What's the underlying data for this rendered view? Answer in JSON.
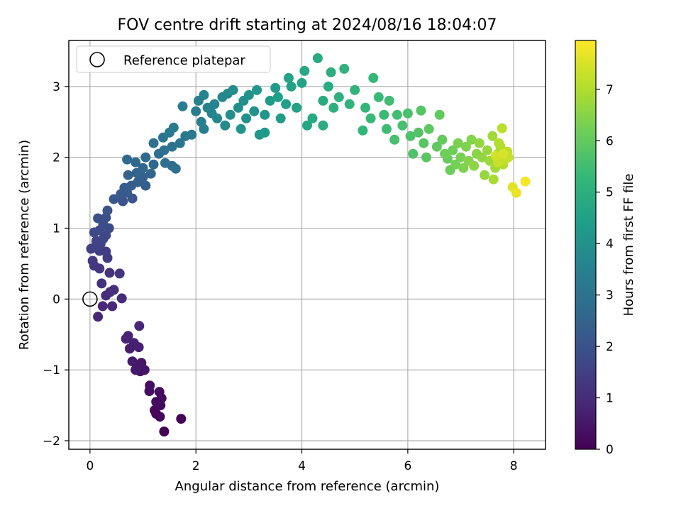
{
  "chart_data": {
    "type": "scatter",
    "title": "FOV centre drift starting at 2024/08/16 18:04:07",
    "xlabel": "Angular distance from reference (arcmin)",
    "ylabel": "Rotation from reference (arcmin)",
    "xlim": [
      -0.4,
      8.6
    ],
    "ylim": [
      -2.12,
      3.65
    ],
    "xticks": [
      0,
      2,
      4,
      6,
      8
    ],
    "yticks": [
      -2,
      -1,
      0,
      1,
      2,
      3
    ],
    "grid": true,
    "legend": {
      "position": "top-left",
      "entries": [
        "Reference platepar"
      ]
    },
    "reference_point": {
      "x": 0,
      "y": 0,
      "label": "Reference platepar"
    },
    "colorbar": {
      "label": "Hours from first FF file",
      "colormap": "viridis",
      "range": [
        0,
        7.95
      ],
      "ticks": [
        0,
        1,
        2,
        3,
        4,
        5,
        6,
        7
      ]
    },
    "colormap_stops": [
      "#440154",
      "#482878",
      "#3e4a89",
      "#31688e",
      "#26828e",
      "#1f9e89",
      "#35b779",
      "#6ece58",
      "#b5de2b",
      "#fde725"
    ],
    "points": [
      [
        1.4,
        -1.87,
        0.02
      ],
      [
        1.72,
        -1.69,
        0.05
      ],
      [
        1.25,
        -1.62,
        0.1
      ],
      [
        1.32,
        -1.66,
        0.12
      ],
      [
        1.22,
        -1.57,
        0.15
      ],
      [
        1.33,
        -1.5,
        0.18
      ],
      [
        1.27,
        -1.48,
        0.2
      ],
      [
        1.35,
        -1.4,
        0.22
      ],
      [
        1.25,
        -1.45,
        0.25
      ],
      [
        1.31,
        -1.31,
        0.28
      ],
      [
        1.12,
        -1.3,
        0.32
      ],
      [
        1.13,
        -1.22,
        0.35
      ],
      [
        0.95,
        -1.02,
        0.4
      ],
      [
        1.03,
        -1.0,
        0.44
      ],
      [
        0.97,
        -0.9,
        0.48
      ],
      [
        0.9,
        -0.95,
        0.52
      ],
      [
        0.86,
        -1.0,
        0.55
      ],
      [
        0.8,
        -0.88,
        0.6
      ],
      [
        0.75,
        -0.7,
        0.64
      ],
      [
        0.92,
        -0.68,
        0.68
      ],
      [
        0.83,
        -0.62,
        0.72
      ],
      [
        0.68,
        -0.56,
        0.76
      ],
      [
        0.72,
        -0.52,
        0.8
      ],
      [
        0.93,
        -0.38,
        0.85
      ],
      [
        0.15,
        -0.25,
        0.88
      ],
      [
        0.24,
        -0.1,
        0.92
      ],
      [
        0.42,
        -0.1,
        0.95
      ],
      [
        0.6,
        0.01,
        0.98
      ],
      [
        0.3,
        0.05,
        1.02
      ],
      [
        0.38,
        0.1,
        1.06
      ],
      [
        0.45,
        0.13,
        1.1
      ],
      [
        0.22,
        0.22,
        1.14
      ],
      [
        0.37,
        0.37,
        1.18
      ],
      [
        0.56,
        0.36,
        1.22
      ],
      [
        0.18,
        0.43,
        1.26
      ],
      [
        0.08,
        0.47,
        1.3
      ],
      [
        0.05,
        0.54,
        1.34
      ],
      [
        0.33,
        0.58,
        1.38
      ],
      [
        0.3,
        0.67,
        1.42
      ],
      [
        0.18,
        0.68,
        1.46
      ],
      [
        0.02,
        0.71,
        1.5
      ],
      [
        0.1,
        0.74,
        1.54
      ],
      [
        0.2,
        0.78,
        1.58
      ],
      [
        0.12,
        0.82,
        1.62
      ],
      [
        0.25,
        0.85,
        1.66
      ],
      [
        0.3,
        0.9,
        1.7
      ],
      [
        0.08,
        0.94,
        1.74
      ],
      [
        0.18,
        0.97,
        1.78
      ],
      [
        0.36,
        1.0,
        1.82
      ],
      [
        0.25,
        1.05,
        1.86
      ],
      [
        0.15,
        1.14,
        1.9
      ],
      [
        0.3,
        1.15,
        1.95
      ],
      [
        0.33,
        1.25,
        2.0
      ],
      [
        0.62,
        1.38,
        2.05
      ],
      [
        0.8,
        1.42,
        2.1
      ],
      [
        0.45,
        1.41,
        2.15
      ],
      [
        0.58,
        1.48,
        2.2
      ],
      [
        0.7,
        1.5,
        2.24
      ],
      [
        0.65,
        1.57,
        2.28
      ],
      [
        0.78,
        1.6,
        2.32
      ],
      [
        1.05,
        1.6,
        2.36
      ],
      [
        0.9,
        1.65,
        2.4
      ],
      [
        1.0,
        1.72,
        2.44
      ],
      [
        0.72,
        1.75,
        2.48
      ],
      [
        0.88,
        1.78,
        2.52
      ],
      [
        1.15,
        1.77,
        2.56
      ],
      [
        1.0,
        1.85,
        2.6
      ],
      [
        1.2,
        1.9,
        2.64
      ],
      [
        0.86,
        1.93,
        2.68
      ],
      [
        0.7,
        1.97,
        2.72
      ],
      [
        1.05,
        2.0,
        2.76
      ],
      [
        1.3,
        2.05,
        2.8
      ],
      [
        1.42,
        1.92,
        2.84
      ],
      [
        1.55,
        1.88,
        2.88
      ],
      [
        1.62,
        1.84,
        2.92
      ],
      [
        1.4,
        2.1,
        2.96
      ],
      [
        1.2,
        2.2,
        3.0
      ],
      [
        1.55,
        2.15,
        3.04
      ],
      [
        1.38,
        2.28,
        3.08
      ],
      [
        1.7,
        2.2,
        3.12
      ],
      [
        1.8,
        2.3,
        3.16
      ],
      [
        1.5,
        2.35,
        3.2
      ],
      [
        1.92,
        2.32,
        3.24
      ],
      [
        1.58,
        2.42,
        3.28
      ],
      [
        1.75,
        2.72,
        3.32
      ],
      [
        2.0,
        2.65,
        3.36
      ],
      [
        2.1,
        2.5,
        3.4
      ],
      [
        2.15,
        2.4,
        3.44
      ],
      [
        2.05,
        2.8,
        3.48
      ],
      [
        2.15,
        2.88,
        3.52
      ],
      [
        2.22,
        2.7,
        3.56
      ],
      [
        2.35,
        2.75,
        3.6
      ],
      [
        2.3,
        2.62,
        3.64
      ],
      [
        2.4,
        2.55,
        3.68
      ],
      [
        2.5,
        2.85,
        3.72
      ],
      [
        2.6,
        2.9,
        3.76
      ],
      [
        2.55,
        2.45,
        3.8
      ],
      [
        2.7,
        2.95,
        3.84
      ],
      [
        2.8,
        2.7,
        3.88
      ],
      [
        2.65,
        2.6,
        3.92
      ],
      [
        2.9,
        2.8,
        3.96
      ],
      [
        2.95,
        2.55,
        4.0
      ],
      [
        3.0,
        2.88,
        4.04
      ],
      [
        3.1,
        2.65,
        4.08
      ],
      [
        2.85,
        2.4,
        4.12
      ],
      [
        3.2,
        2.32,
        4.16
      ],
      [
        3.3,
        2.6,
        4.2
      ],
      [
        3.15,
        2.95,
        4.24
      ],
      [
        3.4,
        2.8,
        4.28
      ],
      [
        3.5,
        2.98,
        4.32
      ],
      [
        3.3,
        2.35,
        4.36
      ],
      [
        3.6,
        2.55,
        4.4
      ],
      [
        3.7,
        2.75,
        4.44
      ],
      [
        3.55,
        2.85,
        4.48
      ],
      [
        3.8,
        3.0,
        4.52
      ],
      [
        3.9,
        2.7,
        4.56
      ],
      [
        3.75,
        3.12,
        4.6
      ],
      [
        4.0,
        3.05,
        4.64
      ],
      [
        4.1,
        2.45,
        4.68
      ],
      [
        4.05,
        3.22,
        4.72
      ],
      [
        4.2,
        2.55,
        4.76
      ],
      [
        4.3,
        3.4,
        4.8
      ],
      [
        4.4,
        2.8,
        4.84
      ],
      [
        4.5,
        3.0,
        4.88
      ],
      [
        4.4,
        2.45,
        4.92
      ],
      [
        4.55,
        3.2,
        4.96
      ],
      [
        4.6,
        2.7,
        5.0
      ],
      [
        4.7,
        2.85,
        5.04
      ],
      [
        4.8,
        3.25,
        5.08
      ],
      [
        4.9,
        2.75,
        5.12
      ],
      [
        5.0,
        2.95,
        5.16
      ],
      [
        5.15,
        2.38,
        5.2
      ],
      [
        5.2,
        2.7,
        5.24
      ],
      [
        5.35,
        3.12,
        5.28
      ],
      [
        5.3,
        2.55,
        5.32
      ],
      [
        5.45,
        2.85,
        5.36
      ],
      [
        5.55,
        2.6,
        5.4
      ],
      [
        5.6,
        2.4,
        5.44
      ],
      [
        5.65,
        2.8,
        5.48
      ],
      [
        5.8,
        2.6,
        5.52
      ],
      [
        5.75,
        2.25,
        5.56
      ],
      [
        5.9,
        2.45,
        5.6
      ],
      [
        6.0,
        2.62,
        5.64
      ],
      [
        6.05,
        2.3,
        5.68
      ],
      [
        6.1,
        2.05,
        5.72
      ],
      [
        6.2,
        2.35,
        5.76
      ],
      [
        6.25,
        2.66,
        5.8
      ],
      [
        6.3,
        2.2,
        5.84
      ],
      [
        6.35,
        2.0,
        5.88
      ],
      [
        6.4,
        2.4,
        5.92
      ],
      [
        6.55,
        2.15,
        5.96
      ],
      [
        6.6,
        2.6,
        6.0
      ],
      [
        6.65,
        2.25,
        6.04
      ],
      [
        6.75,
        1.98,
        6.08
      ],
      [
        6.8,
        1.82,
        6.12
      ],
      [
        6.85,
        2.1,
        6.16
      ],
      [
        6.7,
        2.05,
        6.2
      ],
      [
        6.9,
        1.9,
        6.24
      ],
      [
        7.0,
        2.0,
        6.28
      ],
      [
        6.95,
        2.2,
        6.32
      ],
      [
        7.05,
        1.85,
        6.36
      ],
      [
        7.1,
        2.15,
        6.4
      ],
      [
        7.2,
        2.25,
        6.44
      ],
      [
        7.15,
        1.95,
        6.48
      ],
      [
        7.3,
        2.05,
        6.52
      ],
      [
        7.25,
        1.88,
        6.56
      ],
      [
        7.4,
        2.0,
        6.6
      ],
      [
        7.35,
        2.2,
        6.64
      ],
      [
        7.45,
        1.75,
        6.68
      ],
      [
        7.5,
        2.1,
        6.72
      ],
      [
        7.55,
        1.95,
        6.76
      ],
      [
        7.6,
        2.3,
        6.8
      ],
      [
        7.65,
        1.85,
        6.84
      ],
      [
        7.7,
        2.05,
        6.88
      ],
      [
        7.62,
        1.69,
        6.92
      ],
      [
        7.75,
        2.15,
        6.96
      ],
      [
        7.8,
        1.9,
        7.0
      ],
      [
        7.72,
        2.2,
        7.04
      ],
      [
        7.85,
        2.0,
        7.08
      ],
      [
        7.78,
        2.41,
        7.12
      ],
      [
        7.88,
        2.08,
        7.16
      ],
      [
        7.82,
        1.96,
        7.2
      ],
      [
        7.9,
        2.0,
        7.25
      ],
      [
        7.7,
        1.93,
        7.3
      ],
      [
        7.66,
        2.02,
        7.4
      ],
      [
        7.8,
        2.05,
        7.5
      ],
      [
        7.98,
        1.58,
        7.6
      ],
      [
        8.05,
        1.5,
        7.7
      ],
      [
        8.22,
        1.66,
        7.85
      ]
    ]
  }
}
